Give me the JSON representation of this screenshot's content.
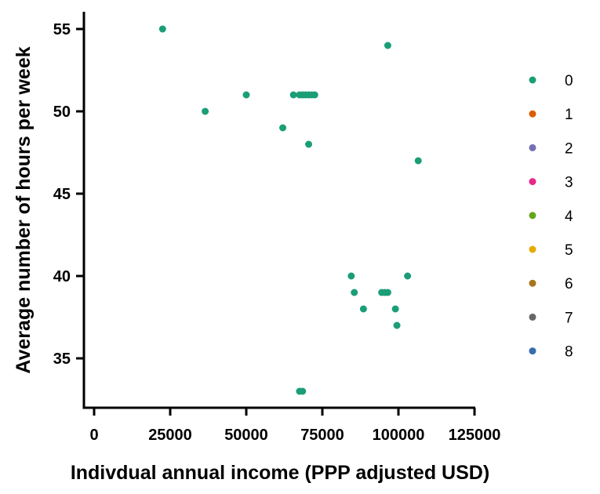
{
  "chart_data": {
    "type": "scatter",
    "title": "",
    "xlabel": "Indivdual annual income (PPP adjusted USD)",
    "ylabel": "Average number of hours per week",
    "xlim": [
      0,
      125000
    ],
    "ylim": [
      32,
      56
    ],
    "xticks": [
      0,
      25000,
      50000,
      75000,
      100000,
      125000
    ],
    "yticks": [
      35,
      40,
      45,
      50,
      55
    ],
    "grid": false,
    "legend_position": "right",
    "series": [
      {
        "name": "0",
        "color": "#1b9e77",
        "points": [
          {
            "x": 22500,
            "y": 55
          },
          {
            "x": 96500,
            "y": 54
          },
          {
            "x": 50000,
            "y": 51
          },
          {
            "x": 65500,
            "y": 51
          },
          {
            "x": 67500,
            "y": 51
          },
          {
            "x": 68500,
            "y": 51
          },
          {
            "x": 69500,
            "y": 51
          },
          {
            "x": 70500,
            "y": 51
          },
          {
            "x": 71500,
            "y": 51
          },
          {
            "x": 72500,
            "y": 51
          },
          {
            "x": 36500,
            "y": 50
          },
          {
            "x": 62000,
            "y": 49
          },
          {
            "x": 70500,
            "y": 48
          },
          {
            "x": 106500,
            "y": 47
          },
          {
            "x": 84500,
            "y": 40
          },
          {
            "x": 103000,
            "y": 40
          },
          {
            "x": 85500,
            "y": 39
          },
          {
            "x": 94500,
            "y": 39
          },
          {
            "x": 95500,
            "y": 39
          },
          {
            "x": 96500,
            "y": 39
          },
          {
            "x": 88500,
            "y": 38
          },
          {
            "x": 99000,
            "y": 38
          },
          {
            "x": 99500,
            "y": 37
          },
          {
            "x": 67500,
            "y": 33
          },
          {
            "x": 68500,
            "y": 33
          }
        ]
      },
      {
        "name": "1",
        "color": "#d95f02",
        "points": []
      },
      {
        "name": "2",
        "color": "#7570b3",
        "points": []
      },
      {
        "name": "3",
        "color": "#e7298a",
        "points": []
      },
      {
        "name": "4",
        "color": "#66a61e",
        "points": []
      },
      {
        "name": "5",
        "color": "#e6ab02",
        "points": []
      },
      {
        "name": "6",
        "color": "#a6761d",
        "points": []
      },
      {
        "name": "7",
        "color": "#666666",
        "points": []
      },
      {
        "name": "8",
        "color": "#386cb0",
        "points": []
      }
    ]
  }
}
